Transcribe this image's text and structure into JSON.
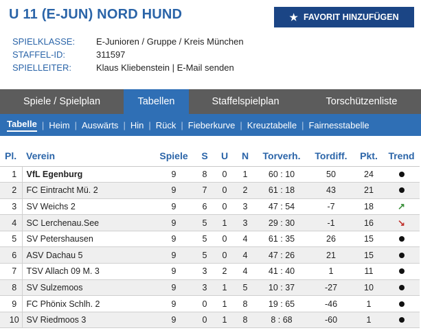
{
  "header": {
    "title": "U 11 (E-JUN) NORD HUND",
    "favorite_button": "FAVORIT HINZUFÜGEN",
    "spielklasse_label": "SPIELKLASSE:",
    "spielklasse_value": "E-Junioren / Gruppe / Kreis München",
    "staffel_label": "STAFFEL-ID:",
    "staffel_value": "311597",
    "spielleiter_label": "SPIELLEITER:",
    "spielleiter_name": "Klaus Kliebenstein",
    "spielleiter_sep": " | ",
    "spielleiter_email": "E-Mail senden"
  },
  "tabs": [
    {
      "label": "Spiele / Spielplan",
      "active": false
    },
    {
      "label": "Tabellen",
      "active": true
    },
    {
      "label": "Staffelspielplan",
      "active": false
    },
    {
      "label": "Torschützenliste",
      "active": false
    }
  ],
  "subnav": [
    {
      "label": "Tabelle",
      "active": true
    },
    {
      "label": "Heim",
      "active": false
    },
    {
      "label": "Auswärts",
      "active": false
    },
    {
      "label": "Hin",
      "active": false
    },
    {
      "label": "Rück",
      "active": false
    },
    {
      "label": "Fieberkurve",
      "active": false
    },
    {
      "label": "Kreuztabelle",
      "active": false
    },
    {
      "label": "Fairnesstabelle",
      "active": false
    }
  ],
  "table": {
    "columns": {
      "pl": "Pl.",
      "verein": "Verein",
      "spiele": "Spiele",
      "s": "S",
      "u": "U",
      "n": "N",
      "torverh": "Torverh.",
      "tordiff": "Tordiff.",
      "pkt": "Pkt.",
      "trend": "Trend"
    },
    "rows": [
      {
        "pl": "1",
        "verein": "VfL Egenburg",
        "spiele": "9",
        "s": "8",
        "u": "0",
        "n": "1",
        "torverh": "60 : 10",
        "tordiff": "50",
        "pkt": "24",
        "trend": "dot"
      },
      {
        "pl": "2",
        "verein": "FC Eintracht Mü. 2",
        "spiele": "9",
        "s": "7",
        "u": "0",
        "n": "2",
        "torverh": "61 : 18",
        "tordiff": "43",
        "pkt": "21",
        "trend": "dot"
      },
      {
        "pl": "3",
        "verein": "SV Weichs 2",
        "spiele": "9",
        "s": "6",
        "u": "0",
        "n": "3",
        "torverh": "47 : 54",
        "tordiff": "-7",
        "pkt": "18",
        "trend": "up"
      },
      {
        "pl": "4",
        "verein": "SC Lerchenau.See",
        "spiele": "9",
        "s": "5",
        "u": "1",
        "n": "3",
        "torverh": "29 : 30",
        "tordiff": "-1",
        "pkt": "16",
        "trend": "down"
      },
      {
        "pl": "5",
        "verein": "SV Petershausen",
        "spiele": "9",
        "s": "5",
        "u": "0",
        "n": "4",
        "torverh": "61 : 35",
        "tordiff": "26",
        "pkt": "15",
        "trend": "dot"
      },
      {
        "pl": "6",
        "verein": "ASV Dachau 5",
        "spiele": "9",
        "s": "5",
        "u": "0",
        "n": "4",
        "torverh": "47 : 26",
        "tordiff": "21",
        "pkt": "15",
        "trend": "dot"
      },
      {
        "pl": "7",
        "verein": "TSV Allach 09 M. 3",
        "spiele": "9",
        "s": "3",
        "u": "2",
        "n": "4",
        "torverh": "41 : 40",
        "tordiff": "1",
        "pkt": "11",
        "trend": "dot"
      },
      {
        "pl": "8",
        "verein": "SV Sulzemoos",
        "spiele": "9",
        "s": "3",
        "u": "1",
        "n": "5",
        "torverh": "10 : 37",
        "tordiff": "-27",
        "pkt": "10",
        "trend": "dot"
      },
      {
        "pl": "9",
        "verein": "FC Phönix Schlh. 2",
        "spiele": "9",
        "s": "0",
        "u": "1",
        "n": "8",
        "torverh": "19 : 65",
        "tordiff": "-46",
        "pkt": "1",
        "trend": "dot"
      },
      {
        "pl": "10",
        "verein": "SV Riedmoos 3",
        "spiele": "9",
        "s": "0",
        "u": "1",
        "n": "8",
        "torverh": "8 : 68",
        "tordiff": "-60",
        "pkt": "1",
        "trend": "dot"
      }
    ]
  },
  "icons": {
    "favorite": "star-icon",
    "trend_neutral": "dot-icon",
    "trend_up": "arrow-up-right-icon",
    "trend_down": "arrow-down-right-icon"
  },
  "colors": {
    "accent": "#2a64a8",
    "tab_active": "#2f6fb5",
    "tab_bar": "#5c5c5c",
    "button": "#1b4585",
    "trend_up": "#3a8f3a",
    "trend_down": "#c0302b"
  }
}
